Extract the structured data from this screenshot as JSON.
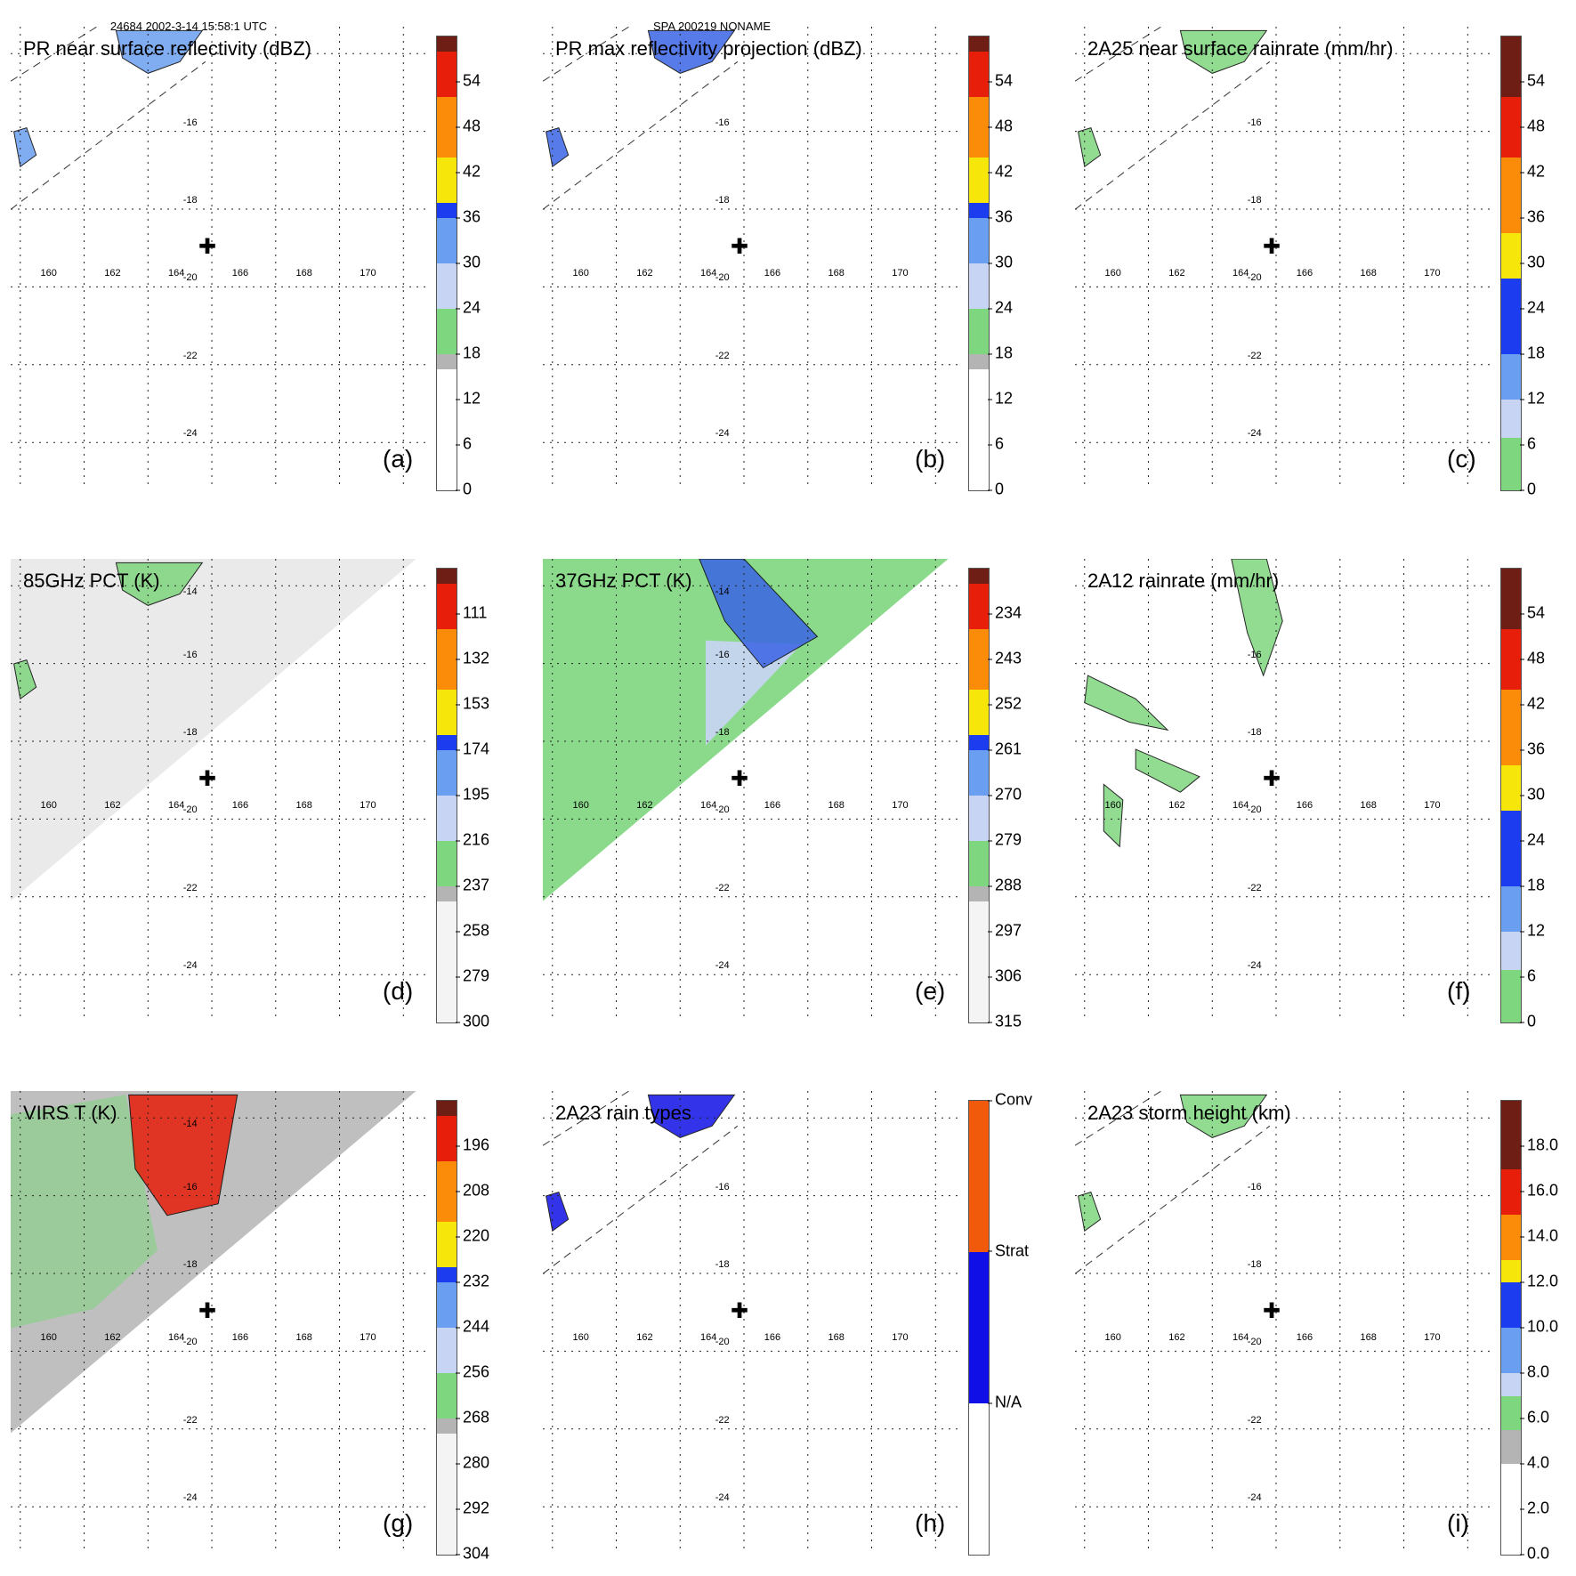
{
  "header": {
    "orbit_time": "24684 2002-3-14 15:58:1 UTC",
    "storm": "SPA 200219 NONAME"
  },
  "map": {
    "lon_labels": [
      "160",
      "162",
      "164",
      "166",
      "168",
      "170"
    ],
    "lat_labels": [
      "-16",
      "-18",
      "-20",
      "-22",
      "-24"
    ],
    "extra_lat_label": "-14",
    "lon_range": [
      158.9,
      172
    ],
    "lat_range": [
      -25.3,
      -13.4
    ],
    "storm_center": {
      "lon": 165.0,
      "lat": -19.1
    }
  },
  "chart_data": [
    {
      "type": "heatmap",
      "id": "a",
      "label": "(a)",
      "title": "PR near surface reflectivity (dBZ)",
      "colorbar": {
        "kind": "numeric",
        "ticks": [
          "0",
          "6",
          "12",
          "18",
          "24",
          "30",
          "36",
          "42",
          "48",
          "54"
        ],
        "colors": [
          "#ffffff",
          "#b4b4b4",
          "#7ed67e",
          "#c8d4f4",
          "#6a9ef0",
          "#1c3cf0",
          "#f6e60a",
          "#fa8c0a",
          "#e61e0a",
          "#6e1e14"
        ],
        "breaks": [
          0,
          16,
          18,
          24,
          30,
          36,
          38,
          44,
          52,
          58,
          60
        ]
      },
      "swath": "narrow",
      "rain_fill": "#6a9ef0"
    },
    {
      "type": "heatmap",
      "id": "b",
      "label": "(b)",
      "title": "PR max reflectivity projection (dBZ)",
      "colorbar": {
        "kind": "numeric",
        "ticks": [
          "0",
          "6",
          "12",
          "18",
          "24",
          "30",
          "36",
          "42",
          "48",
          "54"
        ],
        "colors": [
          "#ffffff",
          "#b4b4b4",
          "#7ed67e",
          "#c8d4f4",
          "#6a9ef0",
          "#1c3cf0",
          "#f6e60a",
          "#fa8c0a",
          "#e61e0a",
          "#6e1e14"
        ],
        "breaks": [
          0,
          16,
          18,
          24,
          30,
          36,
          38,
          44,
          52,
          58,
          60
        ]
      },
      "swath": "narrow",
      "rain_fill": "#3a64e6"
    },
    {
      "type": "heatmap",
      "id": "c",
      "label": "(c)",
      "title": "2A25 near surface rainrate (mm/hr)",
      "colorbar": {
        "kind": "numeric",
        "ticks": [
          "0",
          "6",
          "12",
          "18",
          "24",
          "30",
          "36",
          "42",
          "48",
          "54"
        ],
        "colors": [
          "#7ed67e",
          "#c8d4f4",
          "#6a9ef0",
          "#1c3cf0",
          "#f6e60a",
          "#fa8c0a",
          "#e61e0a",
          "#6e1e14"
        ],
        "breaks": [
          0,
          7,
          12,
          18,
          28,
          34,
          44,
          52,
          60
        ]
      },
      "swath": "narrow",
      "rain_fill": "#7ed67e"
    },
    {
      "type": "heatmap",
      "id": "d",
      "label": "(d)",
      "title": "85GHz PCT (K)",
      "colorbar": {
        "kind": "numeric",
        "ticks": [
          "300",
          "279",
          "258",
          "237",
          "216",
          "195",
          "174",
          "153",
          "132",
          "111"
        ],
        "colors": [
          "#f4f4f4",
          "#b4b4b4",
          "#7ed67e",
          "#c8d4f4",
          "#6a9ef0",
          "#1c3cf0",
          "#f6e60a",
          "#fa8c0a",
          "#e61e0a",
          "#6e1e14"
        ],
        "breaks": [
          0,
          16,
          18,
          24,
          30,
          36,
          38,
          44,
          52,
          58,
          60
        ]
      },
      "swath": "wide",
      "swath_fill": "#e8e8e8",
      "rain_fill": "#7ed67e"
    },
    {
      "type": "heatmap",
      "id": "e",
      "label": "(e)",
      "title": "37GHz PCT (K)",
      "colorbar": {
        "kind": "numeric",
        "ticks": [
          "315",
          "306",
          "297",
          "288",
          "279",
          "270",
          "261",
          "252",
          "243",
          "234"
        ],
        "colors": [
          "#f4f4f4",
          "#b4b4b4",
          "#7ed67e",
          "#c8d4f4",
          "#6a9ef0",
          "#1c3cf0",
          "#f6e60a",
          "#fa8c0a",
          "#e61e0a",
          "#6e1e14"
        ],
        "breaks": [
          0,
          16,
          18,
          24,
          30,
          36,
          38,
          44,
          52,
          58,
          60
        ]
      },
      "swath": "wide",
      "swath_fill": "#7ed67e",
      "rain_fill": "#3a64e6"
    },
    {
      "type": "heatmap",
      "id": "f",
      "label": "(f)",
      "title": "2A12 rainrate (mm/hr)",
      "colorbar": {
        "kind": "numeric",
        "ticks": [
          "0",
          "6",
          "12",
          "18",
          "24",
          "30",
          "36",
          "42",
          "48",
          "54"
        ],
        "colors": [
          "#7ed67e",
          "#c8d4f4",
          "#6a9ef0",
          "#1c3cf0",
          "#f6e60a",
          "#fa8c0a",
          "#e61e0a",
          "#6e1e14"
        ],
        "breaks": [
          0,
          7,
          12,
          18,
          28,
          34,
          44,
          52,
          60
        ]
      },
      "swath": "none",
      "rain_fill": "#7ed67e"
    },
    {
      "type": "heatmap",
      "id": "g",
      "label": "(g)",
      "title": "VIRS T (K)",
      "colorbar": {
        "kind": "numeric",
        "ticks": [
          "304",
          "292",
          "280",
          "268",
          "256",
          "244",
          "232",
          "220",
          "208",
          "196"
        ],
        "colors": [
          "#f4f4f4",
          "#b4b4b4",
          "#7ed67e",
          "#c8d4f4",
          "#6a9ef0",
          "#1c3cf0",
          "#f6e60a",
          "#fa8c0a",
          "#e61e0a",
          "#6e1e14"
        ],
        "breaks": [
          0,
          16,
          18,
          24,
          30,
          36,
          38,
          44,
          52,
          58,
          60
        ]
      },
      "swath": "wide",
      "swath_fill": "#b8b8b8",
      "rain_fill": "#e61e0a"
    },
    {
      "type": "heatmap",
      "id": "h",
      "label": "(h)",
      "title": "2A23 rain types",
      "colorbar": {
        "kind": "categorical",
        "ticks": [
          "N/A",
          "Strat",
          "Conv"
        ],
        "colors": [
          "#ffffff",
          "#1010e6",
          "#f05a0a"
        ],
        "breaks": [
          0,
          1,
          2,
          3
        ]
      },
      "swath": "narrow",
      "rain_fill": "#1010e6"
    },
    {
      "type": "heatmap",
      "id": "i",
      "label": "(i)",
      "title": "2A23 storm height (km)",
      "colorbar": {
        "kind": "numeric",
        "ticks": [
          "0.0",
          "2.0",
          "4.0",
          "6.0",
          "8.0",
          "10.0",
          "12.0",
          "14.0",
          "16.0",
          "18.0"
        ],
        "colors": [
          "#ffffff",
          "#b4b4b4",
          "#7ed67e",
          "#c8d4f4",
          "#6a9ef0",
          "#1c3cf0",
          "#f6e60a",
          "#fa8c0a",
          "#e61e0a",
          "#6e1e14"
        ],
        "breaks": [
          0,
          4,
          5.5,
          7,
          8,
          10,
          12,
          13,
          15,
          17,
          20
        ]
      },
      "swath": "narrow",
      "rain_fill": "#7ed67e"
    }
  ]
}
